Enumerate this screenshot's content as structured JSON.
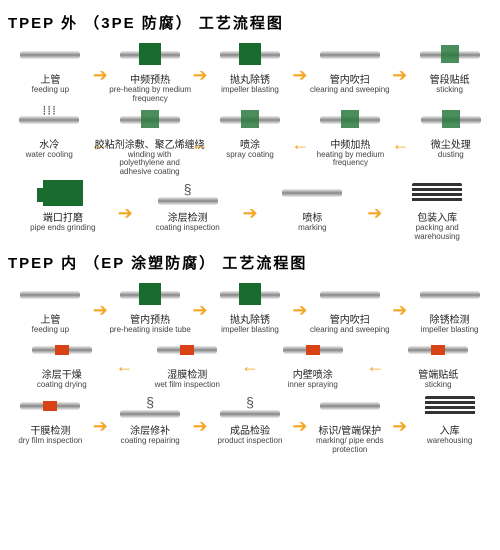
{
  "colors": {
    "accent": "#1a6b2e",
    "arrow": "#f5a623",
    "red": "#d84315"
  },
  "section1": {
    "title": "TPEP 外 （3PE 防腐） 工艺流程图",
    "rows": [
      [
        {
          "zh": "上管",
          "en": "feeding up",
          "icon": "pipe"
        },
        {
          "zh": "中频预热",
          "en": "pre-heating by medium frequency",
          "icon": "pipe-gbox"
        },
        {
          "zh": "抛丸除锈",
          "en": "impeller blasting",
          "icon": "pipe-gbox"
        },
        {
          "zh": "管内吹扫",
          "en": "clearing and sweeping",
          "icon": "pipe"
        },
        {
          "zh": "管段贴纸",
          "en": "sticking",
          "icon": "pipe-gbox2"
        }
      ],
      [
        {
          "zh": "水冷",
          "en": "water cooling",
          "icon": "pipe-dots"
        },
        {
          "zh": "胶粘剂涂敷、聚乙烯缠绕",
          "en": "winding with polyethylene and adhesive coating",
          "icon": "pipe-gbox2"
        },
        {
          "zh": "喷涂",
          "en": "spray coating",
          "icon": "pipe-gbox2"
        },
        {
          "zh": "中频加热",
          "en": "heating by medium frequency",
          "icon": "pipe-gbox2"
        },
        {
          "zh": "微尘处理",
          "en": "dusting",
          "icon": "pipe-gbox2"
        }
      ],
      [
        {
          "zh": "端口打磨",
          "en": "pipe ends grinding",
          "icon": "machine"
        },
        {
          "zh": "涂层检测",
          "en": "coating inspection",
          "icon": "pipe-spring"
        },
        {
          "zh": "喷标",
          "en": "marking",
          "icon": "pipe"
        },
        {
          "zh": "包装入库",
          "en": "packing and warehousing",
          "icon": "stack"
        }
      ]
    ],
    "dirs": [
      "r",
      "l",
      "r"
    ]
  },
  "section2": {
    "title": "TPEP 内 （EP 涂塑防腐） 工艺流程图",
    "rows": [
      [
        {
          "zh": "上管",
          "en": "feeding up",
          "icon": "pipe"
        },
        {
          "zh": "管内预热",
          "en": "pre-heating inside tube",
          "icon": "pipe-gbox"
        },
        {
          "zh": "抛丸除锈",
          "en": "impeller blasting",
          "icon": "pipe-gbox"
        },
        {
          "zh": "管内吹扫",
          "en": "clearing and sweeping",
          "icon": "pipe"
        },
        {
          "zh": "除锈检测",
          "en": "impeller blasting",
          "icon": "pipe"
        }
      ],
      [
        {
          "zh": "涂层干燥",
          "en": "coating drying",
          "icon": "pipe-rband"
        },
        {
          "zh": "湿膜检测",
          "en": "wet film inspection",
          "icon": "pipe-rband"
        },
        {
          "zh": "内壁喷涂",
          "en": "inner spraying",
          "icon": "pipe-rband"
        },
        {
          "zh": "管端贴纸",
          "en": "sticking",
          "icon": "pipe-rband"
        }
      ],
      [
        {
          "zh": "干膜检测",
          "en": "dry film inspection",
          "icon": "pipe-rband"
        },
        {
          "zh": "涂层修补",
          "en": "coating repairing",
          "icon": "pipe-spring"
        },
        {
          "zh": "成品检验",
          "en": "product inspection",
          "icon": "pipe-spring"
        },
        {
          "zh": "标识/管端保护",
          "en": "marking/ pipe ends protection",
          "icon": "pipe"
        },
        {
          "zh": "入库",
          "en": "warehousing",
          "icon": "stack"
        }
      ]
    ],
    "dirs": [
      "r",
      "l",
      "r"
    ]
  }
}
